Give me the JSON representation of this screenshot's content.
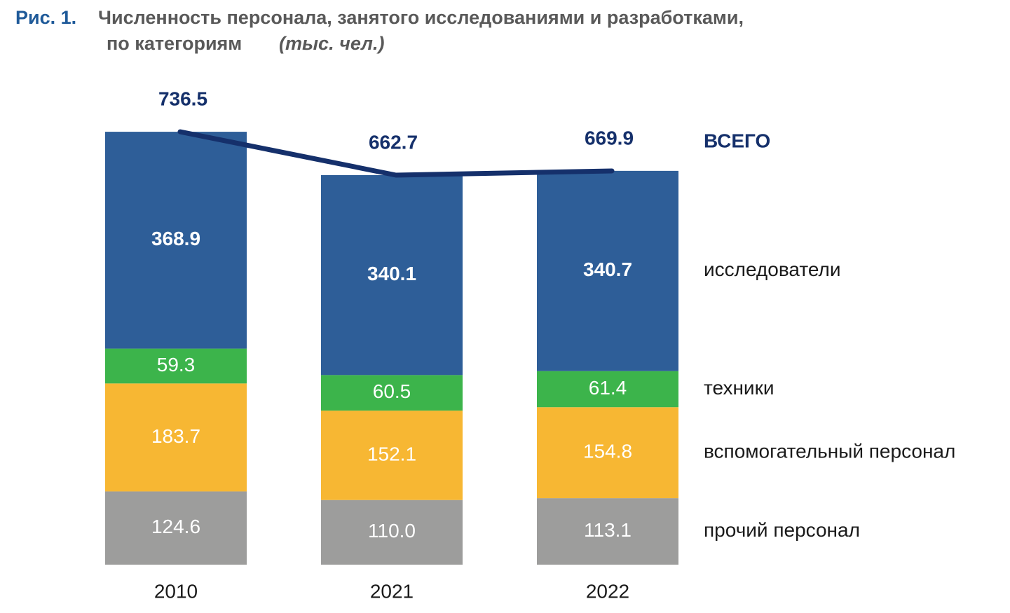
{
  "chart_data": {
    "type": "stacked-bar-line",
    "figure_label": "Рис. 1.",
    "title": [
      "Численность персонала, занятого исследованиями и разработками,",
      "по категориям"
    ],
    "unit": "(тыс. чел.)",
    "categories": [
      "2010",
      "2021",
      "2022"
    ],
    "series": [
      {
        "name": "прочий персонал",
        "color": "#9d9d9c",
        "values": [
          124.6,
          110.0,
          113.1
        ],
        "value_labels": [
          "124.6",
          "110.0",
          "113.1"
        ]
      },
      {
        "name": "вспомогательный персонал",
        "color": "#f7b733",
        "values": [
          183.7,
          152.1,
          154.8
        ]
      },
      {
        "name": "техники",
        "color": "#3cb44b",
        "values": [
          59.3,
          60.5,
          61.4
        ]
      },
      {
        "name": "исследователи",
        "color": "#2e5e98",
        "values": [
          368.9,
          340.1,
          340.7
        ]
      }
    ],
    "total": {
      "name": "ВСЕГО",
      "color": "#15306b",
      "values": [
        736.5,
        662.7,
        669.9
      ]
    }
  }
}
